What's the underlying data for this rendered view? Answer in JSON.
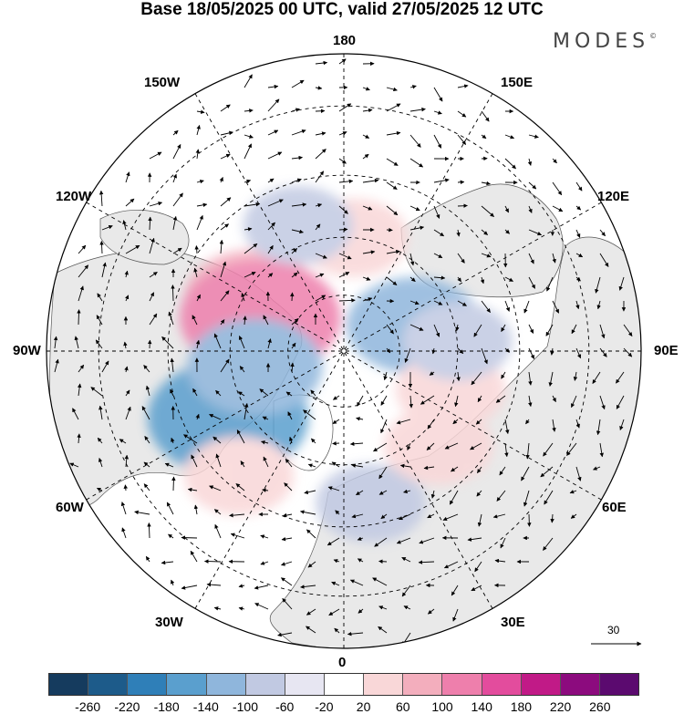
{
  "title": "Base 18/05/2025 00 UTC, valid 27/05/2025 12 UTC",
  "logo": "MODES",
  "logo_mark": "©",
  "longitude_labels": {
    "top": "180",
    "bottom": "0",
    "left": "90W",
    "right": "90E",
    "upper_left_1": "150W",
    "upper_left_2": "120W",
    "upper_right_1": "150E",
    "upper_right_2": "120E",
    "lower_left_1": "60W",
    "lower_left_2": "30W",
    "lower_right_1": "60E",
    "lower_right_2": "30E"
  },
  "vector_scale": {
    "value": "30"
  },
  "colorbar": {
    "colors": [
      "#153b5e",
      "#1d5b8a",
      "#2f7fb8",
      "#5a9fce",
      "#8fb6dc",
      "#c1c9e2",
      "#e7e6f2",
      "#ffffff",
      "#f9d7d8",
      "#f3aebd",
      "#ee7fac",
      "#e34c9d",
      "#c11a87",
      "#8c0b7e",
      "#5b0a6f"
    ],
    "ticks": [
      "-260",
      "-220",
      "-180",
      "-140",
      "-100",
      "-60",
      "-20",
      "20",
      "60",
      "100",
      "140",
      "180",
      "220",
      "260"
    ]
  },
  "anomaly_regions": [
    {
      "lon": -120,
      "lat": 62,
      "value": 100
    },
    {
      "lon": -112,
      "lat": 66,
      "value": 140
    },
    {
      "lon": -60,
      "lat": 55,
      "value": -140
    },
    {
      "lon": -80,
      "lat": 66,
      "value": -100
    },
    {
      "lon": -40,
      "lat": 48,
      "value": 60
    },
    {
      "lon": 10,
      "lat": 50,
      "value": -60
    },
    {
      "lon": 175,
      "lat": 60,
      "value": 60
    },
    {
      "lon": -160,
      "lat": 55,
      "value": -60
    },
    {
      "lon": 110,
      "lat": 70,
      "value": -100
    },
    {
      "lon": 70,
      "lat": 60,
      "value": 60
    },
    {
      "lon": 45,
      "lat": 55,
      "value": 60
    },
    {
      "lon": 95,
      "lat": 60,
      "value": -60
    }
  ]
}
